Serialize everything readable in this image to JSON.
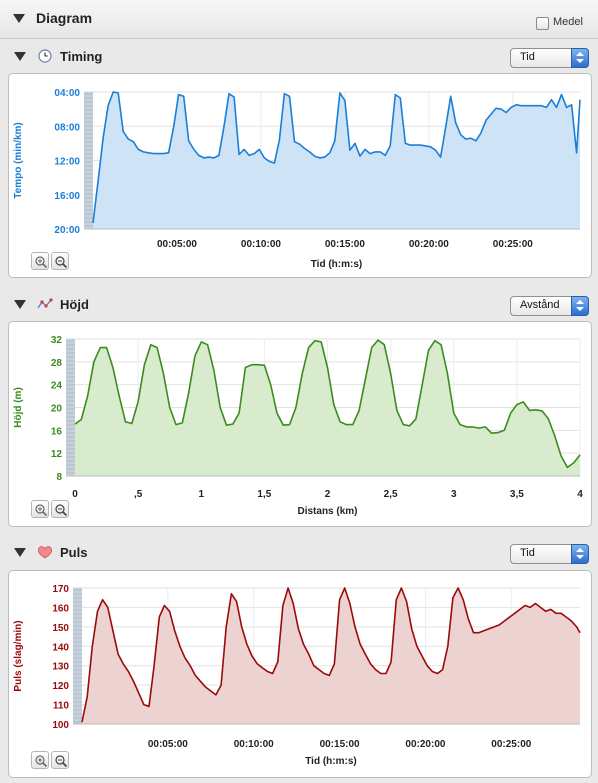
{
  "header": {
    "title": "Diagram",
    "medel_label": "Medel",
    "medel_checked": false
  },
  "sections": {
    "timing": {
      "title": "Timing",
      "select_value": "Tid",
      "icon": "clock-icon"
    },
    "hojd": {
      "title": "Höjd",
      "select_value": "Avstånd",
      "icon": "elevation-chart-icon"
    },
    "puls": {
      "title": "Puls",
      "select_value": "Tid",
      "icon": "heart-icon"
    }
  },
  "colors": {
    "timing_line": "#1a7fd6",
    "timing_fill": "#cfe3f6",
    "hojd_line": "#3a8c1e",
    "hojd_fill": "#d8ebcd",
    "puls_line": "#9b0a0a",
    "puls_fill": "#edd2d2"
  },
  "chart_data": [
    {
      "id": "timing",
      "type": "area",
      "xlabel": "Tid (h:m:s)",
      "ylabel": "Tempo (min/km)",
      "yticks": [
        "04:00",
        "08:00",
        "12:00",
        "16:00",
        "20:00"
      ],
      "xticks": [
        "00:05:00",
        "00:10:00",
        "00:15:00",
        "00:20:00",
        "00:25:00"
      ],
      "ylim": [
        20,
        4
      ],
      "xlim": [
        0,
        29
      ],
      "grid": true,
      "x": [
        0,
        0.3,
        0.6,
        0.9,
        1.2,
        1.5,
        1.8,
        2.1,
        2.4,
        2.7,
        3.0,
        3.3,
        3.6,
        3.9,
        4.2,
        4.5,
        4.8,
        5.1,
        5.4,
        5.7,
        6.0,
        6.3,
        6.6,
        6.9,
        7.2,
        7.5,
        7.8,
        8.1,
        8.4,
        8.7,
        9.0,
        9.3,
        9.6,
        9.9,
        10.2,
        10.5,
        10.8,
        11.1,
        11.4,
        11.7,
        12.0,
        12.3,
        12.6,
        12.9,
        13.2,
        13.5,
        13.8,
        14.1,
        14.4,
        14.7,
        15.0,
        15.3,
        15.6,
        15.9,
        16.2,
        16.5,
        16.8,
        17.1,
        17.4,
        17.7,
        18.0,
        18.3,
        18.6,
        18.9,
        19.2,
        19.5,
        19.8,
        20.1,
        20.4,
        20.7,
        21.0,
        21.3,
        21.6,
        21.9,
        22.2,
        22.5,
        22.8,
        23.1,
        23.4,
        23.7,
        24.0,
        24.3,
        24.6,
        24.9,
        25.2,
        25.5,
        25.8,
        26.1,
        26.4,
        26.7,
        27.0,
        27.3,
        27.6,
        27.9,
        28.2,
        28.5,
        28.8,
        29.0
      ],
      "y": [
        19.3,
        14.5,
        9.4,
        5.6,
        4.0,
        4.1,
        8.6,
        9.5,
        9.8,
        10.7,
        11.0,
        11.1,
        11.2,
        11.2,
        11.2,
        11.1,
        8.1,
        4.3,
        4.5,
        9.7,
        10.7,
        11.4,
        11.7,
        11.6,
        11.7,
        11.4,
        8.0,
        4.2,
        4.6,
        11.3,
        10.7,
        11.4,
        11.2,
        10.7,
        11.7,
        12.1,
        12.3,
        9.6,
        4.2,
        4.5,
        9.8,
        10.1,
        10.6,
        11.0,
        11.5,
        11.7,
        11.6,
        11.1,
        9.7,
        4.1,
        5.0,
        10.8,
        10.0,
        11.5,
        10.7,
        11.2,
        11.0,
        11.0,
        11.4,
        10.3,
        4.3,
        4.7,
        10.0,
        10.2,
        10.2,
        10.2,
        10.3,
        10.4,
        10.8,
        11.6,
        8.1,
        4.5,
        7.6,
        9.0,
        9.5,
        9.4,
        9.7,
        8.8,
        7.3,
        6.6,
        5.9,
        6.0,
        6.4,
        5.8,
        5.5,
        5.6,
        5.6,
        5.6,
        5.6,
        5.6,
        5.8,
        4.9,
        5.8,
        4.3,
        5.8,
        5.5,
        11.1,
        4.9
      ]
    },
    {
      "id": "hojd",
      "type": "area",
      "xlabel": "Distans (km)",
      "ylabel": "Höjd (m)",
      "yticks": [
        "32",
        "28",
        "24",
        "20",
        "16",
        "12",
        "8"
      ],
      "xticks": [
        "0",
        ",5",
        "1",
        "1,5",
        "2",
        "2,5",
        "3",
        "3,5",
        "4"
      ],
      "ylim": [
        8,
        32
      ],
      "xlim": [
        0,
        4
      ],
      "grid": true,
      "x": [
        0,
        0.05,
        0.1,
        0.15,
        0.2,
        0.25,
        0.3,
        0.35,
        0.4,
        0.45,
        0.5,
        0.55,
        0.6,
        0.65,
        0.7,
        0.75,
        0.8,
        0.85,
        0.9,
        0.95,
        1.0,
        1.05,
        1.1,
        1.15,
        1.2,
        1.25,
        1.3,
        1.35,
        1.4,
        1.45,
        1.5,
        1.55,
        1.6,
        1.65,
        1.7,
        1.75,
        1.8,
        1.85,
        1.9,
        1.95,
        2.0,
        2.05,
        2.1,
        2.15,
        2.2,
        2.25,
        2.3,
        2.35,
        2.4,
        2.45,
        2.5,
        2.55,
        2.6,
        2.65,
        2.7,
        2.75,
        2.8,
        2.85,
        2.9,
        2.95,
        3.0,
        3.05,
        3.1,
        3.15,
        3.2,
        3.25,
        3.3,
        3.35,
        3.4,
        3.45,
        3.5,
        3.55,
        3.6,
        3.65,
        3.7,
        3.75,
        3.8,
        3.85,
        3.9,
        3.95,
        4.0
      ],
      "y": [
        17.1,
        17.9,
        22.0,
        28.0,
        30.5,
        30.5,
        27.0,
        22.0,
        17.5,
        17.2,
        21.0,
        27.5,
        31.0,
        30.5,
        26.0,
        20.0,
        17.0,
        17.3,
        22.5,
        29.0,
        31.5,
        31.0,
        26.5,
        20.0,
        16.9,
        17.1,
        19.0,
        27.0,
        27.5,
        27.5,
        27.4,
        24.0,
        19.0,
        16.9,
        17.0,
        20.0,
        26.0,
        30.5,
        31.7,
        31.5,
        27.0,
        20.5,
        17.5,
        17.0,
        17.0,
        19.5,
        25.0,
        30.5,
        31.8,
        31.0,
        26.0,
        19.5,
        17.0,
        16.8,
        18.0,
        24.0,
        30.0,
        31.7,
        31.0,
        26.0,
        19.0,
        17.0,
        16.6,
        16.6,
        16.4,
        16.6,
        15.5,
        15.6,
        16.0,
        19.0,
        20.5,
        21.0,
        19.5,
        19.6,
        19.4,
        18.0,
        15.0,
        11.5,
        9.5,
        10.3,
        11.7
      ]
    },
    {
      "id": "puls",
      "type": "area",
      "xlabel": "Tid (h:m:s)",
      "ylabel": "Puls (slag/min)",
      "yticks": [
        "170",
        "160",
        "150",
        "140",
        "130",
        "120",
        "110",
        "100"
      ],
      "xticks": [
        "00:05:00",
        "00:10:00",
        "00:15:00",
        "00:20:00",
        "00:25:00"
      ],
      "ylim": [
        100,
        170
      ],
      "xlim": [
        0,
        29
      ],
      "grid": true,
      "x": [
        0,
        0.3,
        0.6,
        0.9,
        1.2,
        1.5,
        1.8,
        2.1,
        2.4,
        2.7,
        3.0,
        3.3,
        3.6,
        3.9,
        4.2,
        4.5,
        4.8,
        5.1,
        5.4,
        5.7,
        6.0,
        6.3,
        6.6,
        6.9,
        7.2,
        7.5,
        7.8,
        8.1,
        8.4,
        8.7,
        9.0,
        9.3,
        9.6,
        9.9,
        10.2,
        10.5,
        10.8,
        11.1,
        11.4,
        11.7,
        12.0,
        12.3,
        12.6,
        12.9,
        13.2,
        13.5,
        13.8,
        14.1,
        14.4,
        14.7,
        15.0,
        15.3,
        15.6,
        15.9,
        16.2,
        16.5,
        16.8,
        17.1,
        17.4,
        17.7,
        18.0,
        18.3,
        18.6,
        18.9,
        19.2,
        19.5,
        19.8,
        20.1,
        20.4,
        20.7,
        21.0,
        21.3,
        21.6,
        21.9,
        22.2,
        22.5,
        22.8,
        23.1,
        23.4,
        23.7,
        24.0,
        24.3,
        24.6,
        24.9,
        25.2,
        25.5,
        25.8,
        26.1,
        26.4,
        26.7,
        27.0,
        27.3,
        27.6,
        27.9,
        28.2,
        28.5,
        28.8,
        29.0
      ],
      "y": [
        101,
        114,
        140,
        158,
        164,
        160,
        148,
        136,
        131,
        127,
        122,
        116,
        110,
        109,
        130,
        155,
        161,
        158,
        148,
        140,
        134,
        130,
        125,
        122,
        119,
        117,
        115,
        120,
        150,
        167,
        163,
        150,
        141,
        135,
        131,
        129,
        127,
        126,
        132,
        161,
        170,
        162,
        149,
        141,
        136,
        130,
        128,
        126,
        125,
        131,
        164,
        170,
        162,
        150,
        141,
        136,
        131,
        128,
        126,
        126,
        132,
        164,
        170,
        163,
        149,
        140,
        135,
        130,
        127,
        126,
        128,
        140,
        165,
        170,
        164,
        154,
        147,
        147,
        148,
        149,
        150,
        151,
        153,
        155,
        157,
        159,
        161,
        160,
        162,
        160,
        158,
        159,
        157,
        157,
        155,
        153,
        150,
        147
      ]
    }
  ]
}
